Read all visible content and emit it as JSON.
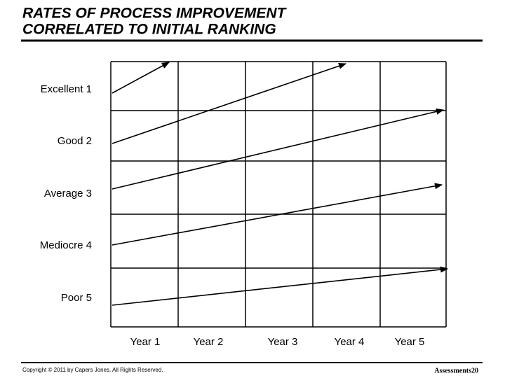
{
  "header": {
    "title_line_1": "RATES OF PROCESS IMPROVEMENT",
    "title_line_2": "CORRELATED TO INITIAL RANKING"
  },
  "rows": [
    "Excellent 1",
    "Good 2",
    "Average 3",
    "Mediocre 4",
    "Poor 5"
  ],
  "columns": [
    "Year 1",
    "Year 2",
    "Year 3",
    "Year 4",
    "Year 5"
  ],
  "footer": {
    "copyright": "Copyright © 2011 by Capers Jones. All Rights Reserved.",
    "page": "Assessments20"
  }
}
